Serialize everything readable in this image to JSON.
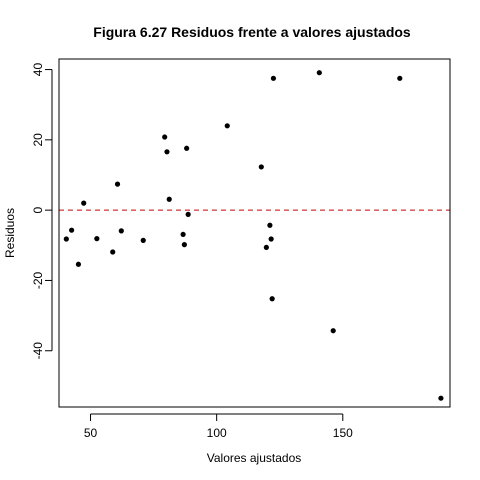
{
  "chart_data": {
    "type": "scatter",
    "title": "Figura 6.27 Residuos frente a valores ajustados",
    "xlabel": "Valores ajustados",
    "ylabel": "Residuos",
    "xlim": [
      37.5,
      192.5
    ],
    "ylim": [
      -56,
      43
    ],
    "xticks": [
      50,
      100,
      150
    ],
    "yticks": [
      -40,
      -20,
      0,
      20,
      40
    ],
    "reference_line": {
      "y": 0,
      "color": "#cc0000",
      "style": "dashed"
    },
    "point_color": "#000000",
    "grid": false,
    "x": [
      40.4,
      42.5,
      45.2,
      47.3,
      52.5,
      58.8,
      60.7,
      62.2,
      70.9,
      79.4,
      80.3,
      81.2,
      86.7,
      87.2,
      88.1,
      88.7,
      104.2,
      117.7,
      119.7,
      121.1,
      121.6,
      122.0,
      122.5,
      140.7,
      146.2,
      172.6,
      188.9
    ],
    "y": [
      -8.2,
      -5.7,
      -15.4,
      2.0,
      -8.1,
      -11.9,
      7.4,
      -5.9,
      -8.6,
      20.8,
      16.6,
      3.1,
      -6.9,
      -9.8,
      17.6,
      -1.2,
      24.0,
      12.3,
      -10.6,
      -4.3,
      -8.2,
      -25.2,
      37.5,
      39.1,
      -34.3,
      37.5,
      -53.5
    ]
  }
}
